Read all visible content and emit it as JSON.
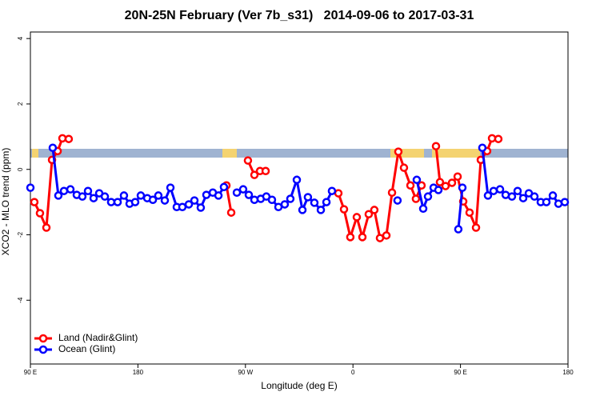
{
  "chart_data": {
    "type": "line",
    "title": "20N-25N February (Ver 7b_s31)   2014-09-06 to 2017-03-31",
    "x_label": "Longitude (deg E)",
    "y_label": "XCO2 - MLO trend (ppm)",
    "xlim": [
      90,
      540
    ],
    "xticks": [
      {
        "value": 90,
        "label": "90 E"
      },
      180,
      {
        "value": 270,
        "label": "90 W"
      },
      {
        "value": 360,
        "label": "0"
      },
      {
        "value": 450,
        "label": "90 E"
      },
      {
        "value": 540,
        "label": "180"
      }
    ],
    "ylim": [
      -5.95,
      4.2
    ],
    "yticks": [
      -4,
      -2,
      0,
      2,
      4
    ],
    "legend": "bottom-left",
    "series": [
      {
        "name": "Land (Nadir&Glint)",
        "color": "#ff0000",
        "x": [
          93.3,
          98.0,
          103.4,
          108.1,
          112.8,
          116.8,
          122.1,
          null,
          254.1,
          258.1,
          null,
          272.1,
          277.5,
          282.2,
          286.9,
          null,
          347.8,
          352.5,
          357.8,
          363.2,
          367.9,
          373.2,
          377.9,
          382.6,
          388.0,
          392.7,
          398.0,
          402.7,
          408.1,
          412.7,
          417.4,
          null,
          429.5,
          432.8,
          437.5,
          442.9,
          447.6,
          452.3,
          457.6,
          463.0,
          467.0,
          472.3,
          476.4,
          481.7
        ],
        "values": [
          -1.0,
          -1.34,
          -1.78,
          0.29,
          0.56,
          0.95,
          0.93,
          null,
          -0.49,
          -1.32,
          null,
          0.27,
          -0.17,
          -0.05,
          -0.05,
          null,
          -0.73,
          -1.22,
          -2.07,
          -1.46,
          -2.07,
          -1.37,
          -1.24,
          -2.1,
          -2.02,
          -0.71,
          0.54,
          0.05,
          -0.49,
          -0.9,
          -0.49,
          null,
          0.71,
          -0.39,
          -0.51,
          -0.41,
          -0.22,
          -0.98,
          -1.32,
          -1.78,
          0.29,
          0.56,
          0.95,
          0.93
        ]
      },
      {
        "name": "Ocean (Glint)",
        "color": "#0000ff",
        "x": [
          90,
          null,
          108.7,
          113.4,
          118.1,
          123.5,
          128.8,
          133.5,
          138.2,
          142.9,
          147.6,
          152.3,
          157.6,
          163.0,
          168.3,
          173.0,
          177.7,
          182.4,
          187.8,
          192.5,
          197.1,
          202.5,
          207.2,
          212.5,
          217.2,
          222.6,
          227.3,
          232.6,
          237.3,
          242.7,
          247.4,
          252.0,
          null,
          262.8,
          268.1,
          272.8,
          277.5,
          282.8,
          287.5,
          292.2,
          297.6,
          302.9,
          307.6,
          313.0,
          317.7,
          322.3,
          327.7,
          333.1,
          337.8,
          342.4,
          null,
          397.3,
          null,
          413.4,
          418.8,
          422.8,
          427.5,
          431.5,
          null,
          448.2,
          451.6,
          null,
          468.3,
          473.0,
          477.7,
          483.1,
          487.8,
          493.1,
          497.8,
          502.5,
          507.2,
          511.9,
          517.2,
          521.9,
          527.3,
          532.0,
          537.3
        ],
        "values": [
          -0.56,
          null,
          0.66,
          -0.8,
          -0.66,
          -0.61,
          -0.78,
          -0.83,
          -0.66,
          -0.88,
          -0.73,
          -0.83,
          -1.0,
          -1.0,
          -0.8,
          -1.05,
          -1.0,
          -0.8,
          -0.88,
          -0.93,
          -0.8,
          -0.95,
          -0.56,
          -1.15,
          -1.15,
          -1.07,
          -0.95,
          -1.17,
          -0.78,
          -0.71,
          -0.8,
          -0.54,
          null,
          -0.71,
          -0.61,
          -0.78,
          -0.93,
          -0.9,
          -0.83,
          -0.93,
          -1.15,
          -1.07,
          -0.9,
          -0.32,
          -1.24,
          -0.85,
          -1.02,
          -1.24,
          -1.0,
          -0.66,
          null,
          -0.95,
          null,
          -0.32,
          -1.2,
          -0.83,
          -0.56,
          -0.63,
          null,
          -1.83,
          -0.56,
          null,
          0.66,
          -0.8,
          -0.66,
          -0.61,
          -0.78,
          -0.83,
          -0.66,
          -0.88,
          -0.73,
          -0.83,
          -1.0,
          -1.0,
          -0.8,
          -1.05,
          -1.0
        ]
      }
    ]
  }
}
